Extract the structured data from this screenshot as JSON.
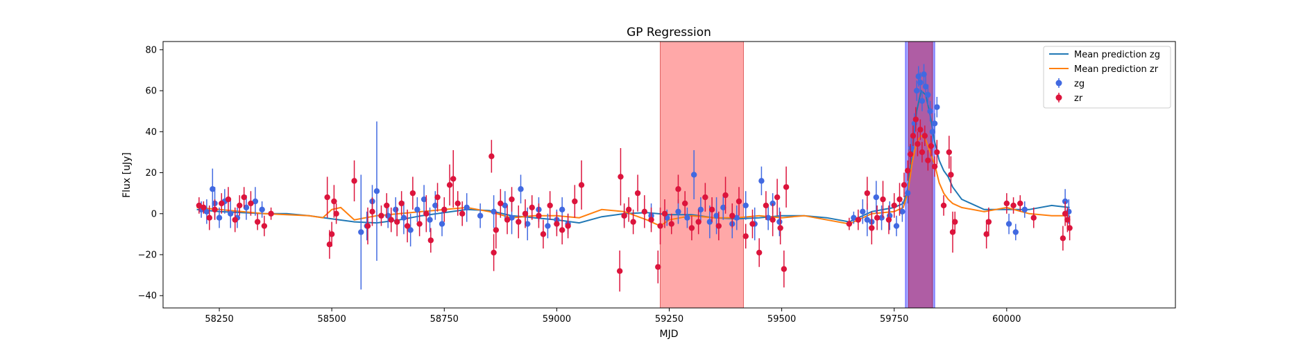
{
  "chart_data": {
    "type": "scatter",
    "title": "GP Regression",
    "xlabel": "MJD",
    "ylabel": "Flux [uJy]",
    "xlim": [
      58125,
      60375
    ],
    "ylim": [
      -46,
      84
    ],
    "xticks": [
      58250,
      58500,
      58750,
      59000,
      59250,
      59500,
      59750,
      60000
    ],
    "yticks": [
      -40,
      -20,
      0,
      20,
      40,
      60,
      80
    ],
    "grid": false,
    "legend_position": "top-right",
    "legend": [
      "Mean prediction zg",
      "Mean prediction zr",
      "zg",
      "zr"
    ],
    "colors": {
      "zg_line": "#1f77b4",
      "zr_line": "#ff7f0e",
      "zg_points": "#4169e1",
      "zr_points": "#dc143c",
      "red_band": "#ff9999",
      "blue_band": "#8f8fff",
      "overlap_band": "#b05a9f"
    },
    "shaded_regions": [
      {
        "band": "zr",
        "x_start": 59230,
        "x_end": 59415
      },
      {
        "band": "zg",
        "x_start": 59775,
        "x_end": 59840
      },
      {
        "band": "zr",
        "x_start": 59782,
        "x_end": 59835
      }
    ],
    "series": [
      {
        "name": "Mean prediction zg",
        "kind": "line",
        "x": [
          58200,
          58250,
          58300,
          58350,
          58400,
          58450,
          58500,
          58550,
          58600,
          58650,
          58700,
          58750,
          58800,
          58850,
          58900,
          58950,
          59000,
          59050,
          59100,
          59150,
          59200,
          59250,
          59300,
          59350,
          59400,
          59450,
          59500,
          59550,
          59600,
          59650,
          59700,
          59750,
          59770,
          59780,
          59790,
          59800,
          59810,
          59820,
          59830,
          59840,
          59850,
          59860,
          59870,
          59880,
          59900,
          59950,
          60000,
          60050,
          60100,
          60140
        ],
        "y": [
          2,
          1,
          0.5,
          0,
          0,
          -1,
          -2.5,
          -4,
          -4.5,
          -3,
          -1,
          0.5,
          2,
          1.5,
          -1,
          -2,
          -3,
          -4.5,
          -1.5,
          0,
          0.5,
          -0.5,
          -0.5,
          -2,
          -2.5,
          -2,
          -1,
          -1,
          -2,
          -4,
          1,
          3,
          5,
          12,
          30,
          50,
          60,
          58,
          48,
          35,
          26,
          21,
          18,
          13,
          7,
          2,
          2,
          2,
          4,
          3
        ]
      },
      {
        "name": "Mean prediction zr",
        "kind": "line",
        "x": [
          58200,
          58250,
          58300,
          58350,
          58400,
          58450,
          58480,
          58500,
          58520,
          58550,
          58600,
          58650,
          58700,
          58750,
          58800,
          58850,
          58900,
          58950,
          59000,
          59050,
          59100,
          59150,
          59200,
          59230,
          59250,
          59300,
          59350,
          59400,
          59450,
          59500,
          59550,
          59600,
          59650,
          59700,
          59750,
          59770,
          59780,
          59790,
          59800,
          59810,
          59820,
          59830,
          59840,
          59850,
          59860,
          59870,
          59880,
          59900,
          59950,
          60000,
          60050,
          60100,
          60140
        ],
        "y": [
          3,
          2,
          1,
          0,
          -0.5,
          -1,
          -2,
          2,
          3,
          -3,
          -1,
          0,
          1,
          2,
          3,
          1,
          -2,
          -1,
          -1,
          -2,
          2,
          1,
          -3,
          -6,
          -3,
          -1,
          -2,
          -2,
          -1,
          -2,
          -1,
          -3,
          -5,
          0,
          1,
          3,
          10,
          25,
          35,
          38,
          36,
          30,
          24,
          15,
          10,
          7,
          5,
          3,
          1,
          3,
          0,
          -1,
          -1
        ]
      },
      {
        "name": "zg",
        "kind": "errorbar",
        "points": [
          [
            58210,
            2,
            4
          ],
          [
            58222,
            1,
            6
          ],
          [
            58235,
            12,
            10
          ],
          [
            58240,
            5,
            8
          ],
          [
            58250,
            -2,
            5
          ],
          [
            58262,
            6,
            6
          ],
          [
            58275,
            0,
            7
          ],
          [
            58290,
            -2,
            5
          ],
          [
            58310,
            3,
            6
          ],
          [
            58330,
            6,
            7
          ],
          [
            58345,
            2,
            4
          ],
          [
            58565,
            -9,
            28
          ],
          [
            58578,
            -6,
            7
          ],
          [
            58590,
            6,
            8
          ],
          [
            58600,
            11,
            34
          ],
          [
            58625,
            -1,
            6
          ],
          [
            58642,
            2,
            6
          ],
          [
            58660,
            -2,
            8
          ],
          [
            58675,
            -8,
            8
          ],
          [
            58690,
            2,
            6
          ],
          [
            58705,
            7,
            7
          ],
          [
            58718,
            -3,
            6
          ],
          [
            58730,
            4,
            7
          ],
          [
            58745,
            -5,
            6
          ],
          [
            58800,
            3,
            7
          ],
          [
            58830,
            -1,
            6
          ],
          [
            58860,
            1,
            8
          ],
          [
            58885,
            4,
            7
          ],
          [
            58900,
            -2,
            8
          ],
          [
            58920,
            12,
            7
          ],
          [
            58935,
            -5,
            8
          ],
          [
            58960,
            2,
            6
          ],
          [
            58980,
            -6,
            6
          ],
          [
            59000,
            -3,
            5
          ],
          [
            59012,
            2,
            6
          ],
          [
            59025,
            -5,
            5
          ],
          [
            59150,
            -1,
            5
          ],
          [
            59210,
            -1,
            6
          ],
          [
            59245,
            -2,
            4
          ],
          [
            59270,
            1,
            6
          ],
          [
            59290,
            -2,
            5
          ],
          [
            59305,
            19,
            12
          ],
          [
            59320,
            2,
            6
          ],
          [
            59340,
            -4,
            8
          ],
          [
            59355,
            -1,
            9
          ],
          [
            59370,
            3,
            6
          ],
          [
            59390,
            -5,
            7
          ],
          [
            59400,
            -2,
            6
          ],
          [
            59420,
            4,
            7
          ],
          [
            59440,
            -5,
            8
          ],
          [
            59455,
            16,
            7
          ],
          [
            59470,
            -2,
            6
          ],
          [
            59480,
            5,
            5
          ],
          [
            59495,
            -4,
            7
          ],
          [
            59660,
            -2,
            3
          ],
          [
            59680,
            1,
            6
          ],
          [
            59690,
            -3,
            8
          ],
          [
            59700,
            -4,
            5
          ],
          [
            59710,
            8,
            8
          ],
          [
            59722,
            -2,
            6
          ],
          [
            59740,
            -1,
            7
          ],
          [
            59755,
            -6,
            5
          ],
          [
            59768,
            1,
            5
          ],
          [
            59780,
            10,
            5
          ],
          [
            59788,
            32,
            5
          ],
          [
            59795,
            44,
            5
          ],
          [
            59800,
            60,
            5
          ],
          [
            59804,
            67,
            5
          ],
          [
            59808,
            64,
            5
          ],
          [
            59812,
            55,
            5
          ],
          [
            59816,
            68,
            5
          ],
          [
            59820,
            62,
            5
          ],
          [
            59825,
            58,
            5
          ],
          [
            59830,
            50,
            5
          ],
          [
            59835,
            40,
            5
          ],
          [
            59840,
            44,
            5
          ],
          [
            59845,
            52,
            5
          ],
          [
            60005,
            -5,
            5
          ],
          [
            60020,
            -9,
            4
          ],
          [
            60040,
            2,
            4
          ],
          [
            60130,
            6,
            6
          ],
          [
            60138,
            1,
            6
          ]
        ]
      },
      {
        "name": "zr",
        "kind": "errorbar",
        "points": [
          [
            58205,
            4,
            4
          ],
          [
            58215,
            3,
            3
          ],
          [
            58228,
            -2,
            6
          ],
          [
            58240,
            2,
            5
          ],
          [
            58255,
            5,
            5
          ],
          [
            58270,
            7,
            6
          ],
          [
            58285,
            -3,
            6
          ],
          [
            58295,
            4,
            5
          ],
          [
            58305,
            8,
            5
          ],
          [
            58320,
            5,
            6
          ],
          [
            58335,
            -4,
            4
          ],
          [
            58350,
            -6,
            5
          ],
          [
            58365,
            0,
            3
          ],
          [
            58490,
            8,
            10
          ],
          [
            58495,
            -15,
            7
          ],
          [
            58500,
            -10,
            6
          ],
          [
            58505,
            6,
            8
          ],
          [
            58510,
            0,
            5
          ],
          [
            58550,
            16,
            10
          ],
          [
            58580,
            -6,
            9
          ],
          [
            58590,
            1,
            7
          ],
          [
            58610,
            -1,
            5
          ],
          [
            58622,
            4,
            6
          ],
          [
            58632,
            -3,
            6
          ],
          [
            58645,
            -4,
            7
          ],
          [
            58655,
            5,
            6
          ],
          [
            58668,
            -6,
            8
          ],
          [
            58680,
            10,
            8
          ],
          [
            58695,
            -5,
            6
          ],
          [
            58710,
            0,
            9
          ],
          [
            58720,
            -13,
            6
          ],
          [
            58735,
            8,
            7
          ],
          [
            58750,
            2,
            6
          ],
          [
            58762,
            14,
            10
          ],
          [
            58770,
            17,
            14
          ],
          [
            58780,
            5,
            6
          ],
          [
            58790,
            0,
            6
          ],
          [
            58855,
            28,
            8
          ],
          [
            58860,
            -19,
            9
          ],
          [
            58865,
            -8,
            9
          ],
          [
            58875,
            5,
            7
          ],
          [
            58890,
            -3,
            7
          ],
          [
            58900,
            7,
            6
          ],
          [
            58915,
            -4,
            8
          ],
          [
            58930,
            0,
            7
          ],
          [
            58945,
            3,
            6
          ],
          [
            58960,
            -1,
            6
          ],
          [
            58970,
            -10,
            7
          ],
          [
            58985,
            4,
            7
          ],
          [
            59000,
            -5,
            6
          ],
          [
            59012,
            -8,
            7
          ],
          [
            59025,
            -6,
            6
          ],
          [
            59040,
            6,
            8
          ],
          [
            59055,
            14,
            12
          ],
          [
            59140,
            -28,
            10
          ],
          [
            59142,
            18,
            14
          ],
          [
            59150,
            -1,
            6
          ],
          [
            59160,
            2,
            6
          ],
          [
            59170,
            -4,
            6
          ],
          [
            59180,
            10,
            9
          ],
          [
            59195,
            1,
            8
          ],
          [
            59210,
            -3,
            6
          ],
          [
            59225,
            -26,
            8
          ],
          [
            59230,
            -6,
            9
          ],
          [
            59240,
            0,
            7
          ],
          [
            59255,
            -5,
            5
          ],
          [
            59270,
            12,
            7
          ],
          [
            59285,
            5,
            6
          ],
          [
            59300,
            -7,
            6
          ],
          [
            59315,
            -4,
            6
          ],
          [
            59330,
            8,
            7
          ],
          [
            59345,
            2,
            6
          ],
          [
            59360,
            -6,
            7
          ],
          [
            59375,
            9,
            9
          ],
          [
            59390,
            -1,
            6
          ],
          [
            59405,
            6,
            7
          ],
          [
            59420,
            -11,
            6
          ],
          [
            59435,
            -5,
            7
          ],
          [
            59450,
            -19,
            7
          ],
          [
            59465,
            4,
            7
          ],
          [
            59480,
            -3,
            8
          ],
          [
            59490,
            8,
            9
          ],
          [
            59497,
            -7,
            8
          ],
          [
            59505,
            -27,
            9
          ],
          [
            59510,
            13,
            10
          ],
          [
            59650,
            -5,
            3
          ],
          [
            59670,
            -3,
            5
          ],
          [
            59690,
            10,
            8
          ],
          [
            59700,
            -7,
            8
          ],
          [
            59712,
            -2,
            6
          ],
          [
            59725,
            7,
            9
          ],
          [
            59738,
            -3,
            7
          ],
          [
            59750,
            4,
            6
          ],
          [
            59762,
            7,
            8
          ],
          [
            59772,
            14,
            6
          ],
          [
            59780,
            21,
            5
          ],
          [
            59786,
            29,
            5
          ],
          [
            59792,
            38,
            5
          ],
          [
            59798,
            46,
            6
          ],
          [
            59802,
            34,
            6
          ],
          [
            59808,
            41,
            5
          ],
          [
            59812,
            30,
            5
          ],
          [
            59818,
            38,
            5
          ],
          [
            59825,
            26,
            5
          ],
          [
            59832,
            33,
            5
          ],
          [
            59840,
            23,
            5
          ],
          [
            59845,
            30,
            6
          ],
          [
            59860,
            4,
            5
          ],
          [
            59872,
            30,
            8
          ],
          [
            59876,
            19,
            9
          ],
          [
            59880,
            -9,
            10
          ],
          [
            59885,
            -4,
            5
          ],
          [
            59955,
            -10,
            7
          ],
          [
            59960,
            -4,
            7
          ],
          [
            60000,
            5,
            5
          ],
          [
            60015,
            4,
            4
          ],
          [
            60030,
            5,
            4
          ],
          [
            60060,
            -2,
            5
          ],
          [
            60125,
            -12,
            6
          ],
          [
            60130,
            0,
            6
          ],
          [
            60135,
            -3,
            6
          ],
          [
            60140,
            -7,
            6
          ]
        ]
      }
    ]
  }
}
